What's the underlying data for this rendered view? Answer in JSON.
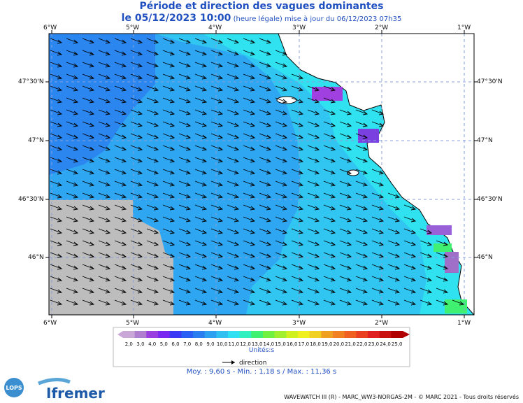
{
  "title": "Période et direction des vagues dominantes",
  "subtitle": {
    "date": "le 05/12/2023 10:00",
    "note": "(heure légale) mise à jour du 06/12/2023 07h35"
  },
  "lon_labels": [
    "6°W",
    "5°W",
    "4°W",
    "3°W",
    "2°W",
    "1°W"
  ],
  "lat_labels": [
    "47°30'N",
    "47°N",
    "46°30'N",
    "46°N"
  ],
  "legend": {
    "values": [
      "2,0",
      "3,0",
      "4,0",
      "5,0",
      "6,0",
      "7,0",
      "8,0",
      "9,0",
      "10,0",
      "11,0",
      "12,0",
      "13,0",
      "14,0",
      "15,0",
      "16,0",
      "17,0",
      "18,0",
      "19,0",
      "20,0",
      "21,0",
      "22,0",
      "23,0",
      "24,0",
      "25,0"
    ],
    "colors": [
      "#c9a8d8",
      "#b07fd0",
      "#9a3fe0",
      "#7a2af0",
      "#3a3af5",
      "#2a5ef5",
      "#2b7ef0",
      "#2ea0f0",
      "#31c0f0",
      "#30e0f0",
      "#30f0c0",
      "#40f070",
      "#70f040",
      "#a0f030",
      "#d0f020",
      "#f0f020",
      "#f0d020",
      "#f0a020",
      "#f08020",
      "#f06020",
      "#e84020",
      "#e02020",
      "#c81010",
      "#b00000"
    ],
    "unit": "Unités",
    "direction_label": "direction"
  },
  "stats": "Moy. : 9,60 s   -   Min. : 1,18 s / Max. : 11,36 s",
  "credit": "WAVEWATCH III (R) - MARC_WW3-NORGAS-2M - © MARC 2021 - Tous droits réservés",
  "logos": {
    "left": "LOPS",
    "right": "Ifremer"
  },
  "colors": {
    "deep": "#2b86f0",
    "mid": "#2ea6f2",
    "shelf": "#31c6f2",
    "coast": "#30e2f0",
    "nodata": "#bdbdbd",
    "land": "#ffffff"
  }
}
